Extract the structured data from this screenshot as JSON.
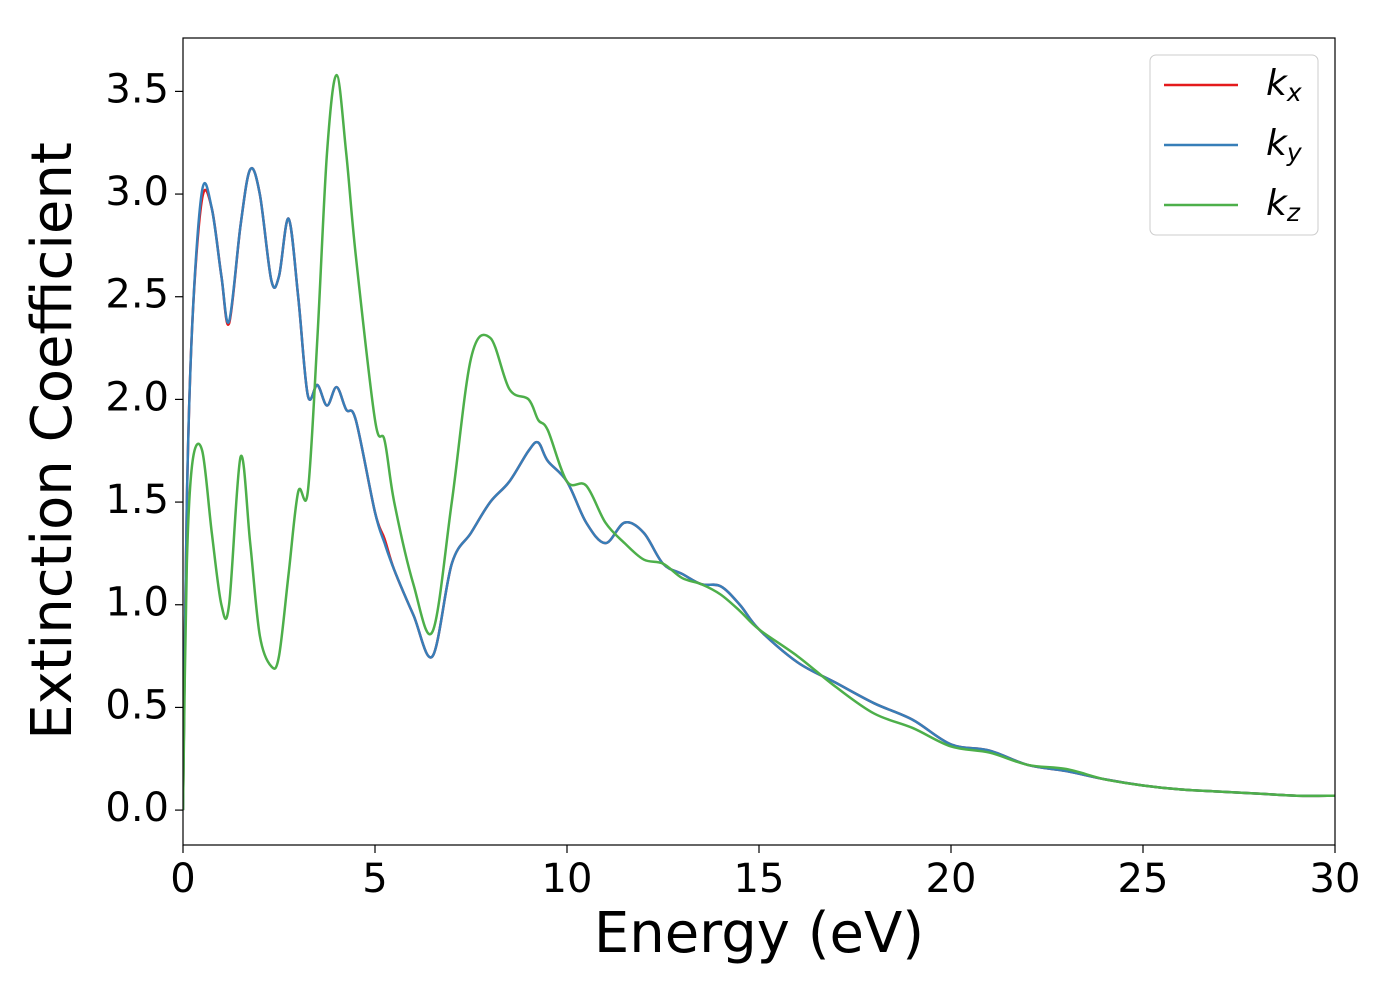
{
  "chart_data": {
    "type": "line",
    "xlabel": "Energy (eV)",
    "ylabel": "Extinction Coefficient",
    "x": [
      0,
      0.1,
      0.25,
      0.5,
      0.75,
      1.0,
      1.2,
      1.5,
      1.75,
      2.0,
      2.3,
      2.5,
      2.75,
      3.0,
      3.25,
      3.5,
      3.75,
      4.0,
      4.25,
      4.5,
      5.0,
      5.25,
      5.5,
      6.0,
      6.5,
      7.0,
      7.5,
      8.0,
      8.5,
      9.0,
      9.25,
      9.5,
      10,
      10.5,
      11,
      11.5,
      12,
      12.5,
      13,
      13.5,
      14,
      14.5,
      15,
      16,
      17,
      18,
      19,
      20,
      21,
      22,
      23,
      24,
      25,
      26,
      27,
      28,
      29,
      30
    ],
    "series": [
      {
        "name": "kx",
        "color": "#e41a1c",
        "values": [
          0.0,
          1.5,
          2.4,
          2.98,
          2.93,
          2.6,
          2.37,
          2.85,
          3.12,
          3.0,
          2.58,
          2.6,
          2.88,
          2.5,
          2.02,
          2.07,
          1.97,
          2.06,
          1.95,
          1.9,
          1.45,
          1.32,
          1.17,
          0.95,
          0.75,
          1.2,
          1.35,
          1.5,
          1.6,
          1.75,
          1.79,
          1.7,
          1.6,
          1.4,
          1.3,
          1.4,
          1.35,
          1.2,
          1.15,
          1.1,
          1.09,
          1.0,
          0.88,
          0.72,
          0.62,
          0.52,
          0.44,
          0.32,
          0.29,
          0.22,
          0.19,
          0.15,
          0.12,
          0.1,
          0.09,
          0.08,
          0.07,
          0.07
        ]
      },
      {
        "name": "ky",
        "color": "#377eb8",
        "values": [
          0.0,
          1.5,
          2.4,
          3.02,
          2.93,
          2.6,
          2.38,
          2.85,
          3.12,
          3.0,
          2.58,
          2.6,
          2.88,
          2.5,
          2.02,
          2.07,
          1.97,
          2.06,
          1.95,
          1.9,
          1.45,
          1.3,
          1.17,
          0.95,
          0.75,
          1.2,
          1.35,
          1.5,
          1.6,
          1.75,
          1.79,
          1.7,
          1.6,
          1.4,
          1.3,
          1.4,
          1.35,
          1.2,
          1.15,
          1.1,
          1.09,
          1.0,
          0.88,
          0.72,
          0.62,
          0.52,
          0.44,
          0.32,
          0.29,
          0.22,
          0.19,
          0.15,
          0.12,
          0.1,
          0.09,
          0.08,
          0.07,
          0.07
        ]
      },
      {
        "name": "kz",
        "color": "#4daf4a",
        "values": [
          0.0,
          1.2,
          1.7,
          1.75,
          1.35,
          1.0,
          1.0,
          1.72,
          1.3,
          0.85,
          0.7,
          0.75,
          1.15,
          1.55,
          1.55,
          2.3,
          3.2,
          3.58,
          3.2,
          2.7,
          1.9,
          1.8,
          1.5,
          1.1,
          0.87,
          1.5,
          2.2,
          2.3,
          2.05,
          2.0,
          1.9,
          1.85,
          1.6,
          1.58,
          1.4,
          1.3,
          1.22,
          1.2,
          1.13,
          1.1,
          1.05,
          0.97,
          0.88,
          0.75,
          0.6,
          0.47,
          0.4,
          0.31,
          0.28,
          0.22,
          0.2,
          0.15,
          0.12,
          0.1,
          0.09,
          0.08,
          0.07,
          0.07
        ]
      }
    ],
    "xlim": [
      0,
      30
    ],
    "xticks": [
      0,
      5,
      10,
      15,
      20,
      25,
      30
    ],
    "ylim": [
      -0.17,
      3.76
    ],
    "yticks": [
      {
        "value": 0,
        "label": "0.0"
      },
      0.5,
      {
        "value": 1,
        "label": "1.0"
      },
      1.5,
      {
        "value": 2,
        "label": "2.0"
      },
      2.5,
      {
        "value": 3,
        "label": "3.0"
      },
      3.5
    ],
    "legend": "upper right"
  }
}
